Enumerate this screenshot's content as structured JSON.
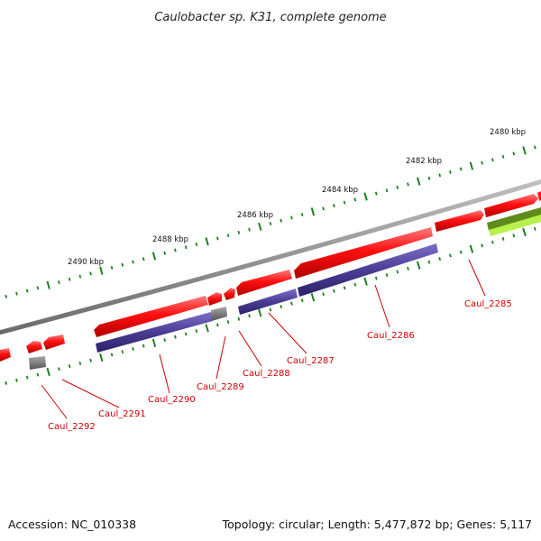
{
  "title": "Caulobacter sp. K31, complete genome",
  "accession": "Accession: NC_010338",
  "topology": "Topology: circular; Length: 5,477,872 bp; Genes: 5,117",
  "kbp_labels": {
    "k2480": "2480 kbp",
    "k2482": "2482 kbp",
    "k2484": "2484 kbp",
    "k2486": "2486 kbp",
    "k2488": "2488 kbp",
    "k2490": "2490 kbp"
  },
  "genes": {
    "g2285": "Caul_2285",
    "g2286": "Caul_2286",
    "g2287": "Caul_2287",
    "g2288": "Caul_2288",
    "g2289": "Caul_2289",
    "g2290": "Caul_2290",
    "g2291": "Caul_2291",
    "g2292": "Caul_2292"
  },
  "colors": {
    "cds": "#ff1a1a",
    "protein": "#4c3f96",
    "rna": "#707070",
    "other": "#8fcf20",
    "backbone": "#8a8a8a",
    "ticks": "#1f7f1f",
    "label": "#cc0000"
  }
}
